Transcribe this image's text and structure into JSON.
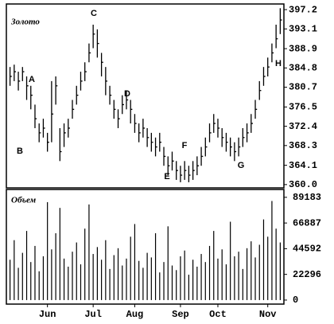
{
  "chart_data": {
    "type": "ohlc",
    "title": "Золото",
    "subtitle": "Объем",
    "annotations": [
      "A",
      "B",
      "C",
      "D",
      "E",
      "F",
      "G",
      "H"
    ],
    "categories": [
      null,
      null,
      null,
      null,
      null,
      null,
      null,
      null,
      null,
      "Jun",
      null,
      null,
      null,
      null,
      null,
      null,
      null,
      null,
      null,
      null,
      "Jul",
      null,
      null,
      null,
      null,
      null,
      null,
      null,
      null,
      null,
      "Aug",
      null,
      null,
      null,
      null,
      null,
      null,
      null,
      null,
      null,
      null,
      "Sep",
      null,
      null,
      null,
      null,
      null,
      null,
      null,
      null,
      "Oct",
      null,
      null,
      null,
      null,
      null,
      null,
      null,
      null,
      null,
      null,
      null,
      "Nov",
      null,
      null,
      null
    ],
    "high": [
      385,
      385.5,
      384,
      385,
      383,
      381,
      377,
      373,
      374,
      371,
      382,
      383,
      372,
      373,
      374,
      378,
      381,
      384,
      386,
      390,
      394,
      393,
      388,
      385,
      381,
      378,
      376,
      379,
      380,
      378,
      375,
      373,
      374,
      372,
      371,
      370,
      371,
      368,
      366,
      367,
      365,
      364,
      365,
      364,
      365,
      366,
      368,
      370,
      373,
      375,
      374,
      372,
      371,
      370,
      369,
      370,
      372,
      373,
      375,
      378,
      382,
      385,
      387,
      390,
      394,
      397.5
    ],
    "low": [
      381,
      382,
      380,
      382,
      378,
      376,
      372,
      369,
      370,
      367,
      369,
      377,
      365,
      368,
      370,
      374,
      377,
      380,
      382,
      386,
      389,
      387,
      383,
      379,
      377,
      374,
      372,
      375,
      376,
      373,
      371,
      369,
      370,
      368,
      367,
      366,
      367,
      364,
      362,
      363,
      361,
      360.5,
      361,
      360.5,
      361,
      362,
      364,
      366,
      369,
      371,
      370,
      368,
      367,
      366,
      365,
      366,
      368,
      369,
      371,
      374,
      378,
      381,
      383,
      386,
      389,
      392
    ],
    "close": [
      383,
      384,
      382,
      384,
      381,
      379,
      374,
      371,
      372,
      369,
      375,
      381,
      367,
      371,
      372,
      376,
      379,
      382,
      384,
      388,
      392,
      390,
      386,
      382,
      379,
      376,
      374,
      377,
      378,
      376,
      373,
      371,
      372,
      370,
      369,
      368,
      369,
      366,
      364,
      365,
      363,
      362,
      363,
      362,
      363,
      364,
      366,
      368,
      371,
      373,
      372,
      370,
      369,
      368,
      367,
      368,
      370,
      371,
      373,
      376,
      380,
      383,
      385,
      388,
      391,
      395
    ],
    "volume": [
      35000,
      52000,
      28000,
      41000,
      60000,
      33000,
      47000,
      25000,
      38000,
      85000,
      44000,
      58000,
      80000,
      36000,
      29000,
      42000,
      50000,
      31000,
      62000,
      83000,
      40000,
      46000,
      35000,
      52000,
      27000,
      39000,
      45000,
      30000,
      36000,
      55000,
      66000,
      34000,
      28000,
      41000,
      37000,
      58000,
      24000,
      33000,
      64000,
      30000,
      26000,
      38000,
      43000,
      22000,
      35000,
      29000,
      40000,
      33000,
      47000,
      60000,
      36000,
      44000,
      31000,
      68000,
      38000,
      42000,
      27000,
      45000,
      51000,
      37000,
      48000,
      70000,
      55000,
      86000,
      62000,
      50000
    ],
    "color": "#000000",
    "ylim": [
      359.3,
      398.4
    ],
    "yticks": [
      {
        "value": 360,
        "label": "360.0"
      },
      364.1,
      368.3,
      372.4,
      376.5,
      380.7,
      384.8,
      388.9,
      393.1,
      397.2
    ],
    "y2lim": [
      -3500,
      96000
    ],
    "y2ticks": [
      0,
      22296,
      44592,
      66887,
      89183
    ]
  }
}
